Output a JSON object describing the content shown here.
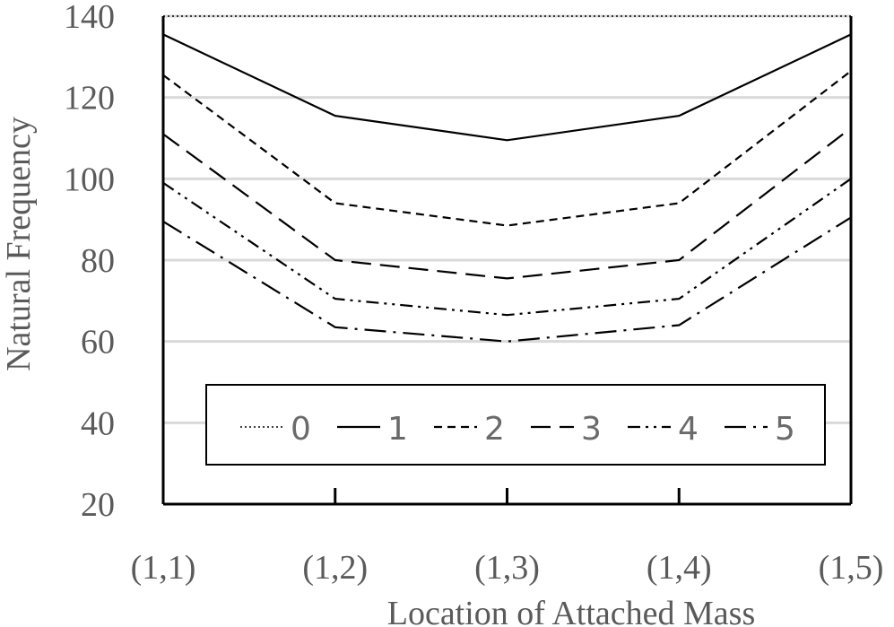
{
  "chart_data": {
    "type": "line",
    "title": "",
    "xlabel": "Location of Attached Mass",
    "ylabel": "Natural Frequency",
    "categories": [
      "(1,1)",
      "(1,2)",
      "(1,3)",
      "(1,4)",
      "(1,5)"
    ],
    "ylim": [
      20,
      140
    ],
    "yticks": [
      20,
      40,
      60,
      80,
      100,
      120,
      140
    ],
    "grid": "horizontal",
    "legend_position": "bottom-inside",
    "series": [
      {
        "name": "0",
        "values": [
          140,
          140,
          140,
          140,
          140
        ],
        "dash": "dotted"
      },
      {
        "name": "1",
        "values": [
          135.5,
          115.5,
          109.5,
          115.5,
          135.5
        ],
        "dash": "solid"
      },
      {
        "name": "2",
        "values": [
          125.5,
          94,
          88.5,
          94,
          126.5
        ],
        "dash": "short-dash"
      },
      {
        "name": "3",
        "values": [
          111,
          80,
          75.5,
          80,
          112.5
        ],
        "dash": "long-dash"
      },
      {
        "name": "4",
        "values": [
          99,
          70.5,
          66.5,
          70.5,
          100
        ],
        "dash": "dash-dot-dot"
      },
      {
        "name": "5",
        "values": [
          89.5,
          63.5,
          60,
          64,
          90.5
        ],
        "dash": "long-dash-dot"
      }
    ],
    "colors": {
      "line": "#000000",
      "grid": "#d9d9d9",
      "text": "#5a5a5a"
    }
  }
}
